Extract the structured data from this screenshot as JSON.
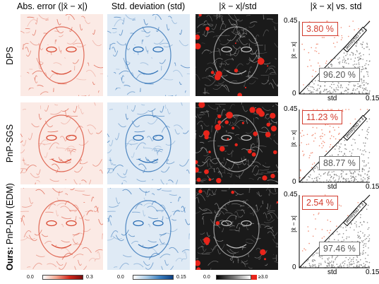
{
  "headers": {
    "abs_error": "Abs. error (|x̄ − x|)",
    "std": "Std. deviation (std)",
    "ratio": "|x̄ − x|/std",
    "scatter": "|x̄ − x| vs. std"
  },
  "rows": [
    {
      "label_bold": "",
      "label": "DPS",
      "red_pct": "3.80 %",
      "gray_pct": "96.20 %"
    },
    {
      "label_bold": "",
      "label": "PnP-SGS",
      "red_pct": "11.23 %",
      "gray_pct": "88.77 %"
    },
    {
      "label_bold": "Ours:",
      "label": " PnP-DM (EDM)",
      "red_pct": "2.54 %",
      "gray_pct": "97.46 %"
    }
  ],
  "scatter_axes": {
    "y_top": "0.45",
    "y_bottom": "0",
    "x_max": "0.15",
    "x_label": "std",
    "y_label": "|x̄ − x|",
    "line_label": "|error|/SD = 3"
  },
  "colorbars": {
    "abs_min": "0.0",
    "abs_max": "0.3",
    "std_min": "0.0",
    "std_max": "0.15",
    "ratio_min": "0.0",
    "ratio_max": "≥3.0"
  },
  "chart_data": [
    {
      "type": "scatter",
      "title": "DPS",
      "xlabel": "std",
      "ylabel": "|x̄ − x|",
      "xlim": [
        0,
        0.15
      ],
      "ylim": [
        0,
        0.45
      ],
      "annotations": {
        "above_threshold_percent": 3.8,
        "below_threshold_percent": 96.2,
        "threshold_line": "|error|/SD = 3"
      }
    },
    {
      "type": "scatter",
      "title": "PnP-SGS",
      "xlabel": "std",
      "ylabel": "|x̄ − x|",
      "xlim": [
        0,
        0.15
      ],
      "ylim": [
        0,
        0.45
      ],
      "annotations": {
        "above_threshold_percent": 11.23,
        "below_threshold_percent": 88.77,
        "threshold_line": "|error|/SD = 3"
      }
    },
    {
      "type": "scatter",
      "title": "PnP-DM (EDM)",
      "xlabel": "std",
      "ylabel": "|x̄ − x|",
      "xlim": [
        0,
        0.15
      ],
      "ylim": [
        0,
        0.45
      ],
      "annotations": {
        "above_threshold_percent": 2.54,
        "below_threshold_percent": 97.46,
        "threshold_line": "|error|/SD = 3"
      }
    }
  ],
  "colors": {
    "red": "#d33a2c",
    "blue": "#2c6fb5",
    "gray": "#777777"
  }
}
